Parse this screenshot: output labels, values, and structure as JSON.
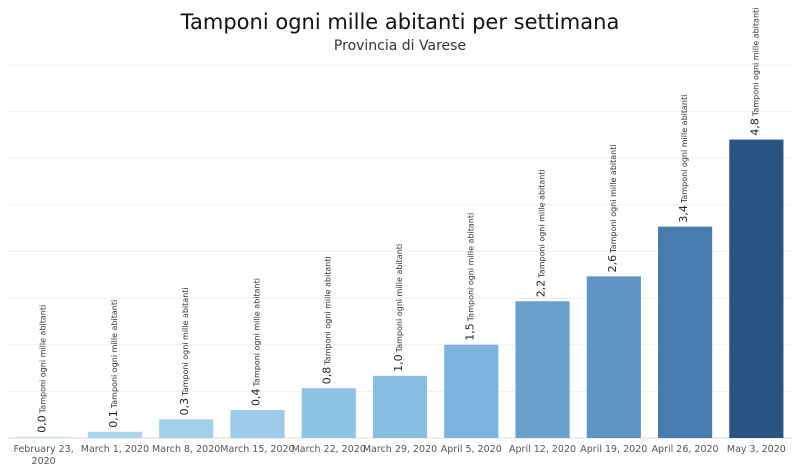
{
  "chart_data": {
    "type": "bar",
    "title": "Tamponi ogni mille abitanti per settimana",
    "subtitle": "Provincia di Varese",
    "xlabel": "",
    "ylabel": "",
    "unit_label": "Tamponi ogni mille abitanti",
    "categories": [
      [
        "February 23,",
        "2020"
      ],
      [
        "March 1, 2020"
      ],
      [
        "March 8, 2020"
      ],
      [
        "March 15, 2020"
      ],
      [
        "March 22, 2020"
      ],
      [
        "March 29, 2020"
      ],
      [
        "April 5, 2020"
      ],
      [
        "April 12, 2020"
      ],
      [
        "April 19, 2020"
      ],
      [
        "April 26, 2020"
      ],
      [
        "May 3, 2020"
      ]
    ],
    "values": [
      0.02,
      0.1,
      0.3,
      0.45,
      0.8,
      1.0,
      1.5,
      2.2,
      2.6,
      3.4,
      4.8
    ],
    "value_labels": [
      "0,0",
      "0,1",
      "0,3",
      "0,4",
      "0,8",
      "1,0",
      "1,5",
      "2,2",
      "2,6",
      "3,4",
      "4,8"
    ],
    "ylim": [
      0,
      6.0
    ],
    "grid": true,
    "colors": [
      "#c6e0f2",
      "#aad2ec",
      "#a4cfea",
      "#9ccbe8",
      "#8fc3e3",
      "#87bde0",
      "#7eb3db",
      "#6b9fcc",
      "#5e93c3",
      "#4a7bb0",
      "#2a5381"
    ]
  }
}
